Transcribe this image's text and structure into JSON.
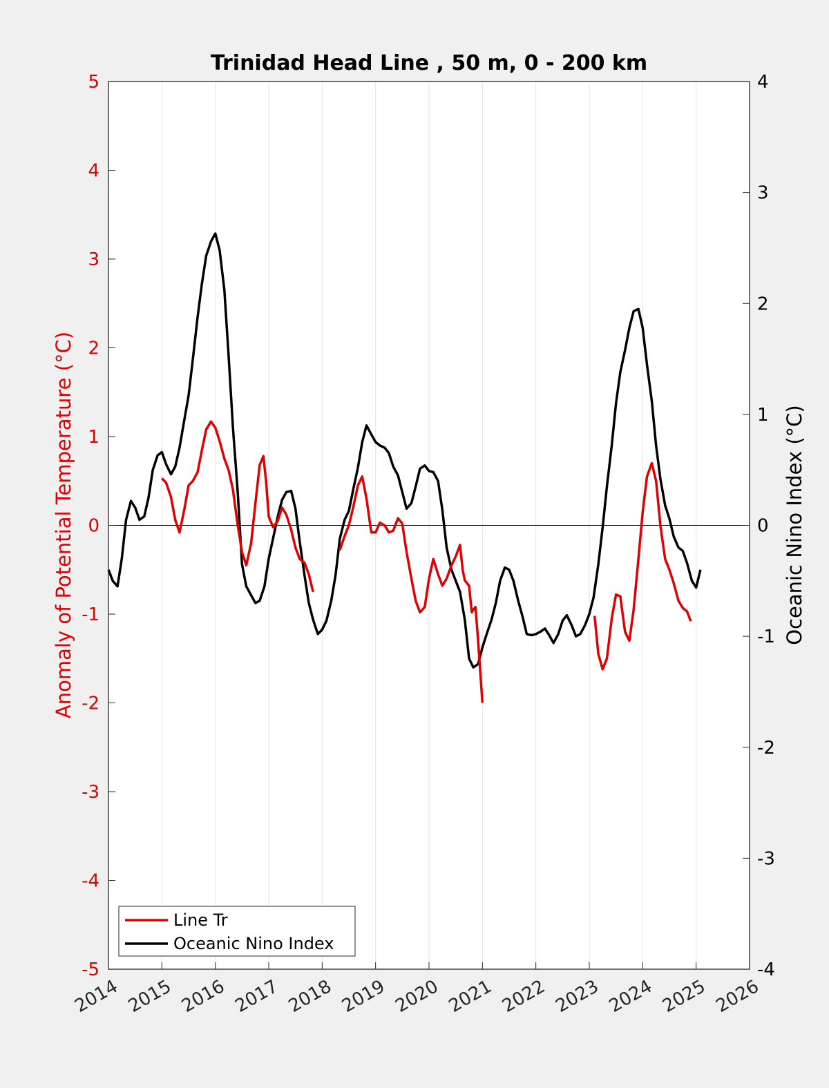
{
  "chart_data": {
    "type": "line",
    "title": "Trinidad Head Line , 50 m, 0 - 200 km",
    "ylabel_left": "Anomaly of Potential Temperature (°C)",
    "ylabel_right": "Oceanic Nino Index (°C)",
    "xlim": [
      2014,
      2026
    ],
    "ylim_left": [
      -5,
      5
    ],
    "ylim_right": [
      -4,
      4
    ],
    "x_ticks": [
      "2014",
      "2015",
      "2016",
      "2017",
      "2018",
      "2019",
      "2020",
      "2021",
      "2022",
      "2023",
      "2024",
      "2025",
      "2026"
    ],
    "y_ticks_left": [
      "5",
      "4",
      "3",
      "2",
      "1",
      "0",
      "-1",
      "-2",
      "-3",
      "-4",
      "-5"
    ],
    "y_ticks_right": [
      "4",
      "3",
      "2",
      "1",
      "0",
      "-1",
      "-2",
      "-3",
      "-4"
    ],
    "grid": "x only",
    "legend_position": "bottom-left",
    "colors": {
      "line_tr": "#e00000",
      "oni": "#000000",
      "zero_line": "#000000"
    },
    "series": [
      {
        "name": "Line Tr",
        "axis": "left",
        "segments": [
          [
            [
              2015.0,
              0.53
            ],
            [
              2015.08,
              0.48
            ],
            [
              2015.17,
              0.32
            ],
            [
              2015.25,
              0.06
            ],
            [
              2015.33,
              -0.08
            ],
            [
              2015.42,
              0.18
            ],
            [
              2015.5,
              0.45
            ],
            [
              2015.58,
              0.5
            ],
            [
              2015.67,
              0.6
            ],
            [
              2015.75,
              0.85
            ],
            [
              2015.83,
              1.08
            ],
            [
              2015.92,
              1.17
            ],
            [
              2016.0,
              1.1
            ],
            [
              2016.08,
              0.95
            ],
            [
              2016.17,
              0.75
            ],
            [
              2016.25,
              0.62
            ],
            [
              2016.33,
              0.4
            ],
            [
              2016.42,
              0.0
            ],
            [
              2016.5,
              -0.3
            ],
            [
              2016.58,
              -0.45
            ],
            [
              2016.67,
              -0.2
            ],
            [
              2016.75,
              0.25
            ],
            [
              2016.83,
              0.68
            ],
            [
              2016.9,
              0.78
            ],
            [
              2016.95,
              0.5
            ],
            [
              2017.0,
              0.1
            ],
            [
              2017.08,
              -0.02
            ],
            [
              2017.17,
              0.05
            ],
            [
              2017.25,
              0.2
            ],
            [
              2017.33,
              0.12
            ],
            [
              2017.42,
              -0.05
            ],
            [
              2017.5,
              -0.25
            ],
            [
              2017.58,
              -0.38
            ],
            [
              2017.67,
              -0.42
            ],
            [
              2017.75,
              -0.55
            ],
            [
              2017.83,
              -0.75
            ]
          ],
          [
            [
              2018.33,
              -0.28
            ],
            [
              2018.42,
              -0.12
            ],
            [
              2018.5,
              0.0
            ],
            [
              2018.58,
              0.2
            ],
            [
              2018.67,
              0.45
            ],
            [
              2018.75,
              0.55
            ],
            [
              2018.83,
              0.3
            ],
            [
              2018.92,
              -0.08
            ],
            [
              2019.0,
              -0.08
            ],
            [
              2019.08,
              0.03
            ],
            [
              2019.17,
              0.0
            ],
            [
              2019.25,
              -0.08
            ],
            [
              2019.33,
              -0.06
            ],
            [
              2019.42,
              0.08
            ],
            [
              2019.5,
              0.02
            ],
            [
              2019.58,
              -0.3
            ],
            [
              2019.67,
              -0.6
            ],
            [
              2019.75,
              -0.85
            ],
            [
              2019.83,
              -0.98
            ],
            [
              2019.92,
              -0.92
            ],
            [
              2020.0,
              -0.6
            ],
            [
              2020.08,
              -0.38
            ],
            [
              2020.17,
              -0.55
            ],
            [
              2020.25,
              -0.68
            ],
            [
              2020.33,
              -0.6
            ],
            [
              2020.42,
              -0.45
            ],
            [
              2020.5,
              -0.35
            ],
            [
              2020.58,
              -0.22
            ],
            [
              2020.63,
              -0.5
            ],
            [
              2020.67,
              -0.62
            ],
            [
              2020.75,
              -0.68
            ],
            [
              2020.8,
              -0.98
            ],
            [
              2020.83,
              -0.95
            ],
            [
              2020.87,
              -0.92
            ],
            [
              2020.92,
              -1.3
            ],
            [
              2021.0,
              -2.0
            ]
          ],
          [
            [
              2023.1,
              -1.02
            ],
            [
              2023.17,
              -1.45
            ],
            [
              2023.25,
              -1.62
            ],
            [
              2023.33,
              -1.5
            ],
            [
              2023.42,
              -1.05
            ],
            [
              2023.5,
              -0.78
            ],
            [
              2023.58,
              -0.8
            ],
            [
              2023.67,
              -1.2
            ],
            [
              2023.75,
              -1.3
            ],
            [
              2023.83,
              -0.95
            ],
            [
              2023.92,
              -0.38
            ],
            [
              2024.0,
              0.15
            ],
            [
              2024.08,
              0.55
            ],
            [
              2024.17,
              0.7
            ],
            [
              2024.25,
              0.5
            ],
            [
              2024.33,
              0.0
            ],
            [
              2024.42,
              -0.38
            ],
            [
              2024.5,
              -0.5
            ],
            [
              2024.58,
              -0.65
            ],
            [
              2024.67,
              -0.85
            ],
            [
              2024.75,
              -0.93
            ],
            [
              2024.83,
              -0.97
            ],
            [
              2024.9,
              -1.08
            ]
          ]
        ]
      },
      {
        "name": "Oceanic Nino Index",
        "axis": "right",
        "points": [
          [
            2014.0,
            -0.4
          ],
          [
            2014.08,
            -0.5
          ],
          [
            2014.17,
            -0.55
          ],
          [
            2014.25,
            -0.3
          ],
          [
            2014.33,
            0.05
          ],
          [
            2014.42,
            0.22
          ],
          [
            2014.5,
            0.16
          ],
          [
            2014.58,
            0.05
          ],
          [
            2014.67,
            0.08
          ],
          [
            2014.75,
            0.25
          ],
          [
            2014.83,
            0.5
          ],
          [
            2014.92,
            0.63
          ],
          [
            2015.0,
            0.66
          ],
          [
            2015.08,
            0.55
          ],
          [
            2015.17,
            0.46
          ],
          [
            2015.25,
            0.53
          ],
          [
            2015.33,
            0.7
          ],
          [
            2015.42,
            0.95
          ],
          [
            2015.5,
            1.17
          ],
          [
            2015.58,
            1.5
          ],
          [
            2015.67,
            1.88
          ],
          [
            2015.75,
            2.18
          ],
          [
            2015.83,
            2.43
          ],
          [
            2015.92,
            2.56
          ],
          [
            2016.0,
            2.63
          ],
          [
            2016.08,
            2.48
          ],
          [
            2016.17,
            2.12
          ],
          [
            2016.25,
            1.52
          ],
          [
            2016.33,
            0.88
          ],
          [
            2016.42,
            0.3
          ],
          [
            2016.5,
            -0.35
          ],
          [
            2016.58,
            -0.55
          ],
          [
            2016.67,
            -0.63
          ],
          [
            2016.75,
            -0.7
          ],
          [
            2016.83,
            -0.68
          ],
          [
            2016.92,
            -0.55
          ],
          [
            2017.0,
            -0.3
          ],
          [
            2017.08,
            -0.12
          ],
          [
            2017.17,
            0.08
          ],
          [
            2017.25,
            0.23
          ],
          [
            2017.33,
            0.3
          ],
          [
            2017.42,
            0.31
          ],
          [
            2017.5,
            0.15
          ],
          [
            2017.58,
            -0.15
          ],
          [
            2017.67,
            -0.45
          ],
          [
            2017.75,
            -0.7
          ],
          [
            2017.83,
            -0.85
          ],
          [
            2017.92,
            -0.98
          ],
          [
            2018.0,
            -0.94
          ],
          [
            2018.08,
            -0.86
          ],
          [
            2018.17,
            -0.68
          ],
          [
            2018.25,
            -0.45
          ],
          [
            2018.33,
            -0.12
          ],
          [
            2018.42,
            0.05
          ],
          [
            2018.5,
            0.13
          ],
          [
            2018.58,
            0.32
          ],
          [
            2018.67,
            0.52
          ],
          [
            2018.75,
            0.75
          ],
          [
            2018.83,
            0.9
          ],
          [
            2018.92,
            0.82
          ],
          [
            2019.0,
            0.75
          ],
          [
            2019.08,
            0.72
          ],
          [
            2019.17,
            0.7
          ],
          [
            2019.25,
            0.65
          ],
          [
            2019.33,
            0.53
          ],
          [
            2019.42,
            0.45
          ],
          [
            2019.5,
            0.3
          ],
          [
            2019.58,
            0.15
          ],
          [
            2019.67,
            0.2
          ],
          [
            2019.75,
            0.35
          ],
          [
            2019.83,
            0.51
          ],
          [
            2019.92,
            0.54
          ],
          [
            2020.0,
            0.49
          ],
          [
            2020.08,
            0.48
          ],
          [
            2020.17,
            0.4
          ],
          [
            2020.25,
            0.14
          ],
          [
            2020.33,
            -0.2
          ],
          [
            2020.42,
            -0.4
          ],
          [
            2020.5,
            -0.5
          ],
          [
            2020.58,
            -0.6
          ],
          [
            2020.67,
            -0.85
          ],
          [
            2020.75,
            -1.2
          ],
          [
            2020.83,
            -1.28
          ],
          [
            2020.92,
            -1.25
          ],
          [
            2021.0,
            -1.1
          ],
          [
            2021.08,
            -0.98
          ],
          [
            2021.17,
            -0.85
          ],
          [
            2021.25,
            -0.7
          ],
          [
            2021.33,
            -0.5
          ],
          [
            2021.42,
            -0.38
          ],
          [
            2021.5,
            -0.4
          ],
          [
            2021.58,
            -0.5
          ],
          [
            2021.67,
            -0.68
          ],
          [
            2021.75,
            -0.82
          ],
          [
            2021.83,
            -0.98
          ],
          [
            2021.92,
            -0.99
          ],
          [
            2022.0,
            -0.98
          ],
          [
            2022.08,
            -0.96
          ],
          [
            2022.17,
            -0.93
          ],
          [
            2022.25,
            -0.99
          ],
          [
            2022.33,
            -1.06
          ],
          [
            2022.42,
            -0.98
          ],
          [
            2022.5,
            -0.86
          ],
          [
            2022.58,
            -0.81
          ],
          [
            2022.67,
            -0.9
          ],
          [
            2022.75,
            -1.0
          ],
          [
            2022.83,
            -0.98
          ],
          [
            2022.92,
            -0.9
          ],
          [
            2023.0,
            -0.8
          ],
          [
            2023.08,
            -0.65
          ],
          [
            2023.17,
            -0.35
          ],
          [
            2023.25,
            -0.02
          ],
          [
            2023.33,
            0.35
          ],
          [
            2023.42,
            0.72
          ],
          [
            2023.5,
            1.1
          ],
          [
            2023.58,
            1.38
          ],
          [
            2023.67,
            1.58
          ],
          [
            2023.75,
            1.78
          ],
          [
            2023.83,
            1.93
          ],
          [
            2023.92,
            1.95
          ],
          [
            2024.0,
            1.78
          ],
          [
            2024.08,
            1.45
          ],
          [
            2024.17,
            1.12
          ],
          [
            2024.25,
            0.72
          ],
          [
            2024.33,
            0.42
          ],
          [
            2024.42,
            0.18
          ],
          [
            2024.5,
            0.06
          ],
          [
            2024.58,
            -0.1
          ],
          [
            2024.67,
            -0.2
          ],
          [
            2024.75,
            -0.23
          ],
          [
            2024.83,
            -0.34
          ],
          [
            2024.92,
            -0.5
          ],
          [
            2025.0,
            -0.56
          ],
          [
            2025.08,
            -0.4
          ]
        ]
      }
    ]
  }
}
